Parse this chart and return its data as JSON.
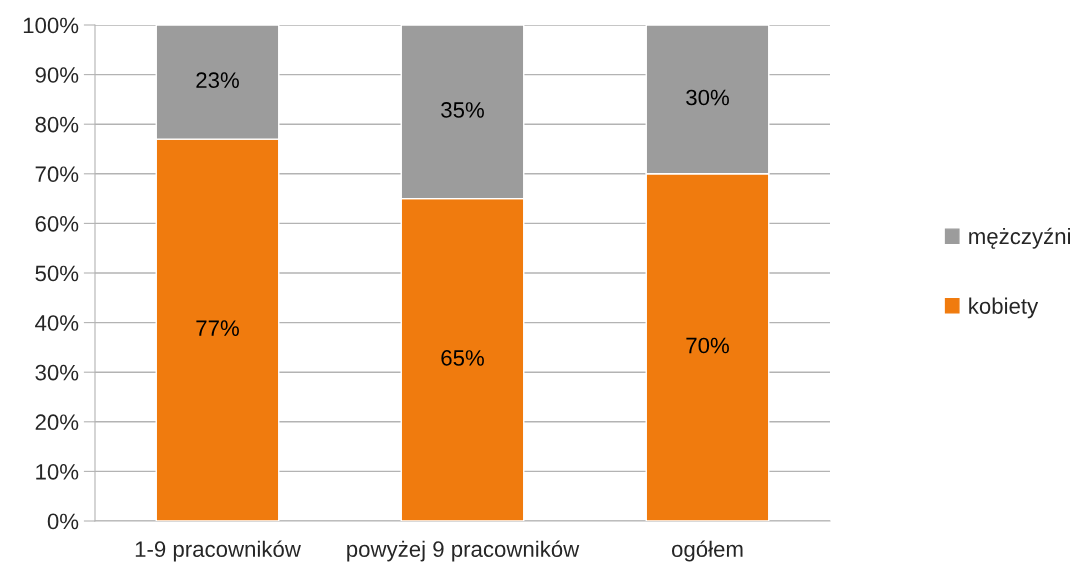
{
  "chart_data": {
    "type": "bar",
    "stacked": true,
    "categories": [
      "1-9 pracowników",
      "powyżej 9 pracowników",
      "ogółem"
    ],
    "series": [
      {
        "name": "kobiety",
        "color": "#f07b0e",
        "values": [
          77,
          65,
          70
        ],
        "value_labels": [
          "77%",
          "65%",
          "70%"
        ]
      },
      {
        "name": "mężczyźni",
        "color": "#9c9c9c",
        "values": [
          23,
          35,
          30
        ],
        "value_labels": [
          "23%",
          "35%",
          "30%"
        ]
      }
    ],
    "ylim": [
      0,
      100
    ],
    "yticks": [
      {
        "value": 0,
        "label": "0%"
      },
      {
        "value": 10,
        "label": "10%"
      },
      {
        "value": 20,
        "label": "20%"
      },
      {
        "value": 30,
        "label": "30%"
      },
      {
        "value": 40,
        "label": "40%"
      },
      {
        "value": 50,
        "label": "50%"
      },
      {
        "value": 60,
        "label": "60%"
      },
      {
        "value": 70,
        "label": "70%"
      },
      {
        "value": 80,
        "label": "80%"
      },
      {
        "value": 90,
        "label": "90%"
      },
      {
        "value": 100,
        "label": "100%"
      }
    ],
    "grid": "y",
    "legend": "right"
  }
}
